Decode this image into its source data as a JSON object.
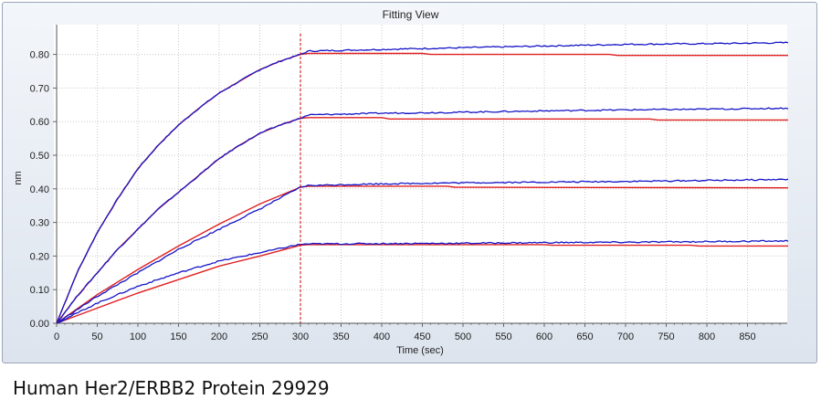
{
  "window": {
    "title": "Fitting View"
  },
  "caption": "Human Her2/ERBB2 Protein 29929",
  "chart_data": {
    "type": "line",
    "title": "",
    "xlabel": "Time (sec)",
    "ylabel": "nm",
    "xlim": [
      0,
      900
    ],
    "ylim": [
      0,
      0.85
    ],
    "xticks": [
      0,
      50,
      100,
      150,
      200,
      250,
      300,
      350,
      400,
      450,
      500,
      550,
      600,
      650,
      700,
      750,
      800,
      850
    ],
    "yticks": [
      0.0,
      0.1,
      0.2,
      0.3,
      0.4,
      0.5,
      0.6,
      0.7,
      0.8
    ],
    "ytick_labels": [
      "0.00",
      "0.10",
      "0.20",
      "0.30",
      "0.40",
      "0.50",
      "0.60",
      "0.70",
      "0.80"
    ],
    "grid": true,
    "vline": {
      "x": 300,
      "color": "#cc0000",
      "style": "dashed"
    },
    "colors": {
      "data": "#1515c8",
      "fit": "#e02020"
    },
    "series": [
      {
        "data": [
          [
            0,
            0
          ],
          [
            25,
            0.15
          ],
          [
            50,
            0.27
          ],
          [
            75,
            0.37
          ],
          [
            100,
            0.46
          ],
          [
            125,
            0.53
          ],
          [
            150,
            0.59
          ],
          [
            175,
            0.64
          ],
          [
            200,
            0.685
          ],
          [
            225,
            0.72
          ],
          [
            250,
            0.755
          ],
          [
            275,
            0.78
          ],
          [
            300,
            0.8
          ],
          [
            310,
            0.81
          ],
          [
            400,
            0.815
          ],
          [
            500,
            0.82
          ],
          [
            600,
            0.825
          ],
          [
            700,
            0.83
          ],
          [
            800,
            0.832
          ],
          [
            900,
            0.835
          ]
        ],
        "fit": [
          [
            0,
            0
          ],
          [
            25,
            0.15
          ],
          [
            50,
            0.27
          ],
          [
            75,
            0.37
          ],
          [
            100,
            0.46
          ],
          [
            125,
            0.53
          ],
          [
            150,
            0.59
          ],
          [
            175,
            0.64
          ],
          [
            200,
            0.685
          ],
          [
            225,
            0.72
          ],
          [
            250,
            0.755
          ],
          [
            275,
            0.78
          ],
          [
            300,
            0.8
          ],
          [
            310,
            0.803
          ],
          [
            450,
            0.803
          ],
          [
            460,
            0.8
          ],
          [
            680,
            0.8
          ],
          [
            690,
            0.797
          ],
          [
            900,
            0.797
          ]
        ]
      },
      {
        "data": [
          [
            0,
            0
          ],
          [
            25,
            0.08
          ],
          [
            50,
            0.15
          ],
          [
            75,
            0.22
          ],
          [
            100,
            0.28
          ],
          [
            125,
            0.34
          ],
          [
            150,
            0.39
          ],
          [
            175,
            0.44
          ],
          [
            200,
            0.49
          ],
          [
            225,
            0.53
          ],
          [
            250,
            0.565
          ],
          [
            275,
            0.59
          ],
          [
            300,
            0.61
          ],
          [
            310,
            0.62
          ],
          [
            400,
            0.625
          ],
          [
            500,
            0.628
          ],
          [
            600,
            0.632
          ],
          [
            700,
            0.635
          ],
          [
            800,
            0.637
          ],
          [
            900,
            0.64
          ]
        ],
        "fit": [
          [
            0,
            0
          ],
          [
            25,
            0.08
          ],
          [
            50,
            0.15
          ],
          [
            75,
            0.22
          ],
          [
            100,
            0.28
          ],
          [
            125,
            0.34
          ],
          [
            150,
            0.39
          ],
          [
            175,
            0.44
          ],
          [
            200,
            0.49
          ],
          [
            225,
            0.53
          ],
          [
            250,
            0.565
          ],
          [
            275,
            0.59
          ],
          [
            300,
            0.61
          ],
          [
            310,
            0.612
          ],
          [
            400,
            0.612
          ],
          [
            410,
            0.608
          ],
          [
            730,
            0.608
          ],
          [
            740,
            0.605
          ],
          [
            900,
            0.605
          ]
        ]
      },
      {
        "data": [
          [
            0,
            0
          ],
          [
            50,
            0.08
          ],
          [
            100,
            0.15
          ],
          [
            150,
            0.22
          ],
          [
            200,
            0.28
          ],
          [
            250,
            0.34
          ],
          [
            300,
            0.405
          ],
          [
            310,
            0.41
          ],
          [
            400,
            0.415
          ],
          [
            500,
            0.418
          ],
          [
            600,
            0.42
          ],
          [
            700,
            0.422
          ],
          [
            800,
            0.425
          ],
          [
            900,
            0.428
          ]
        ],
        "fit": [
          [
            0,
            0
          ],
          [
            50,
            0.085
          ],
          [
            100,
            0.16
          ],
          [
            150,
            0.23
          ],
          [
            200,
            0.295
          ],
          [
            250,
            0.355
          ],
          [
            300,
            0.405
          ],
          [
            310,
            0.408
          ],
          [
            480,
            0.408
          ],
          [
            490,
            0.405
          ],
          [
            900,
            0.403
          ]
        ]
      },
      {
        "data": [
          [
            0,
            0
          ],
          [
            50,
            0.06
          ],
          [
            100,
            0.11
          ],
          [
            150,
            0.15
          ],
          [
            200,
            0.185
          ],
          [
            250,
            0.21
          ],
          [
            300,
            0.235
          ],
          [
            310,
            0.236
          ],
          [
            400,
            0.237
          ],
          [
            500,
            0.238
          ],
          [
            600,
            0.24
          ],
          [
            700,
            0.241
          ],
          [
            800,
            0.243
          ],
          [
            900,
            0.245
          ]
        ],
        "fit": [
          [
            0,
            0
          ],
          [
            50,
            0.045
          ],
          [
            100,
            0.09
          ],
          [
            150,
            0.13
          ],
          [
            200,
            0.17
          ],
          [
            250,
            0.2
          ],
          [
            300,
            0.232
          ],
          [
            310,
            0.234
          ],
          [
            600,
            0.234
          ],
          [
            610,
            0.232
          ],
          [
            780,
            0.232
          ],
          [
            790,
            0.23
          ],
          [
            900,
            0.23
          ]
        ]
      }
    ]
  }
}
